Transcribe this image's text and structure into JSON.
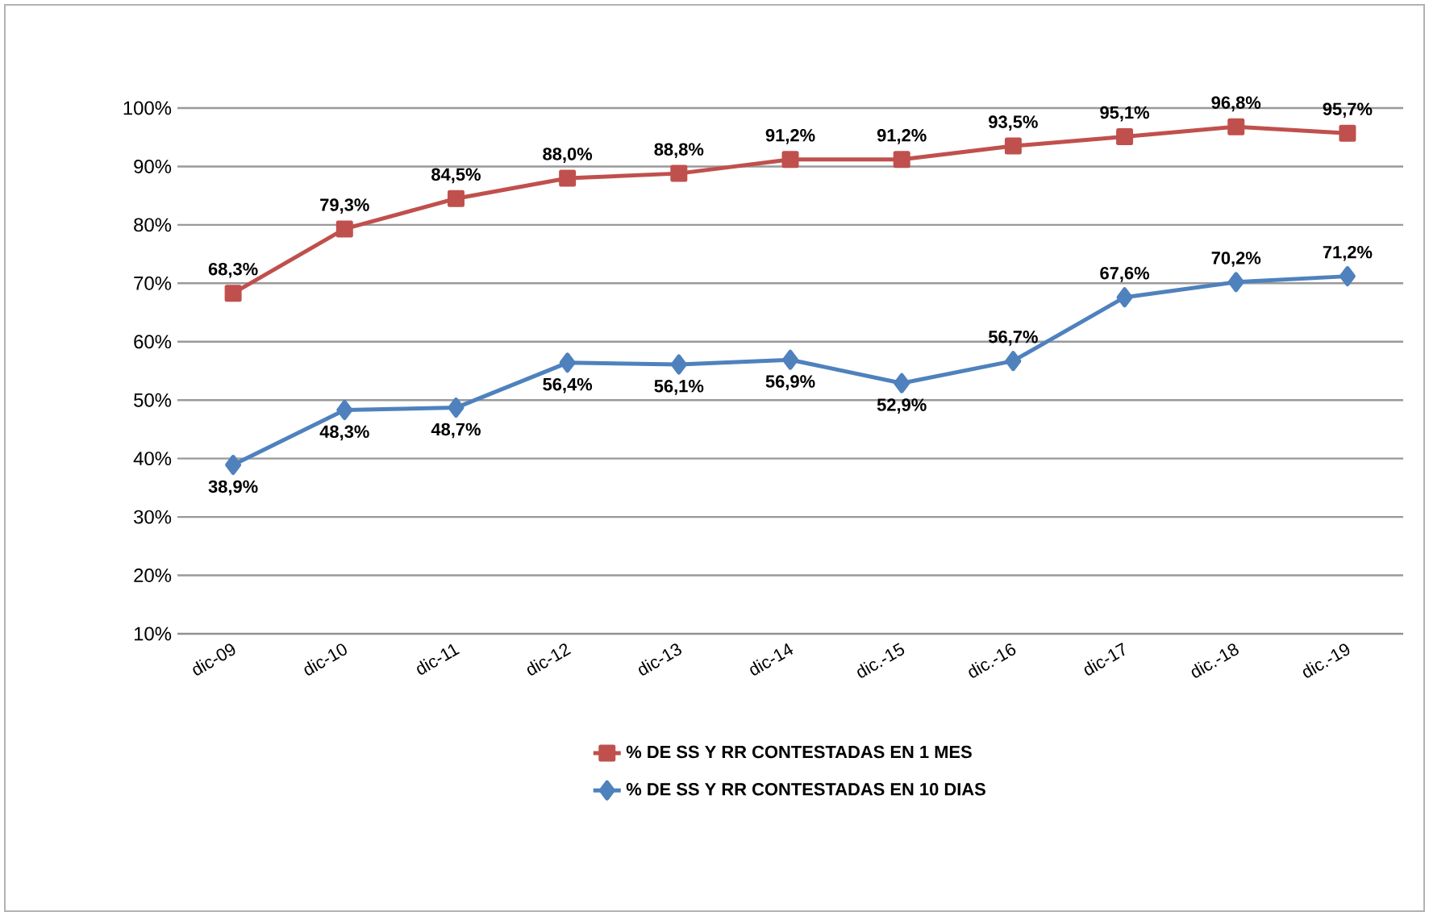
{
  "chart_data": {
    "type": "line",
    "categories": [
      "dic-09",
      "dic-10",
      "dic-11",
      "dic-12",
      "dic-13",
      "dic-14",
      "dic.-15",
      "dic.-16",
      "dic-17",
      "dic.-18",
      "dic.-19"
    ],
    "series": [
      {
        "name": "% DE SS Y RR CONTESTADAS EN 1 MES",
        "color": "#c0504d",
        "marker": "square",
        "values": [
          68.3,
          79.3,
          84.5,
          88.0,
          88.8,
          91.2,
          91.2,
          93.5,
          95.1,
          96.8,
          95.7
        ],
        "value_labels": [
          "68,3%",
          "79,3%",
          "84,5%",
          "88,0%",
          "88,8%",
          "91,2%",
          "91,2%",
          "93,5%",
          "95,1%",
          "96,8%",
          "95,7%"
        ]
      },
      {
        "name": "% DE SS Y RR CONTESTADAS EN 10 DIAS",
        "color": "#4f81bd",
        "marker": "diamond",
        "values": [
          38.9,
          48.3,
          48.7,
          56.4,
          56.1,
          56.9,
          52.9,
          56.7,
          67.6,
          70.2,
          71.2
        ],
        "value_labels": [
          "38,9%",
          "48,3%",
          "48,7%",
          "56,4%",
          "56,1%",
          "56,9%",
          "52,9%",
          "56,7%",
          "67,6%",
          "70,2%",
          "71,2%"
        ]
      }
    ],
    "ylim": [
      10,
      100
    ],
    "yticks": [
      {
        "value": 10,
        "label": "10%"
      },
      {
        "value": 20,
        "label": "20%"
      },
      {
        "value": 30,
        "label": "30%"
      },
      {
        "value": 40,
        "label": "40%"
      },
      {
        "value": 50,
        "label": "50%"
      },
      {
        "value": 60,
        "label": "60%"
      },
      {
        "value": 70,
        "label": "70%"
      },
      {
        "value": 80,
        "label": "80%"
      },
      {
        "value": 90,
        "label": "90%"
      },
      {
        "value": 100,
        "label": "100%"
      }
    ],
    "grid": "y",
    "legend": "bottom",
    "line_style": "solid"
  }
}
